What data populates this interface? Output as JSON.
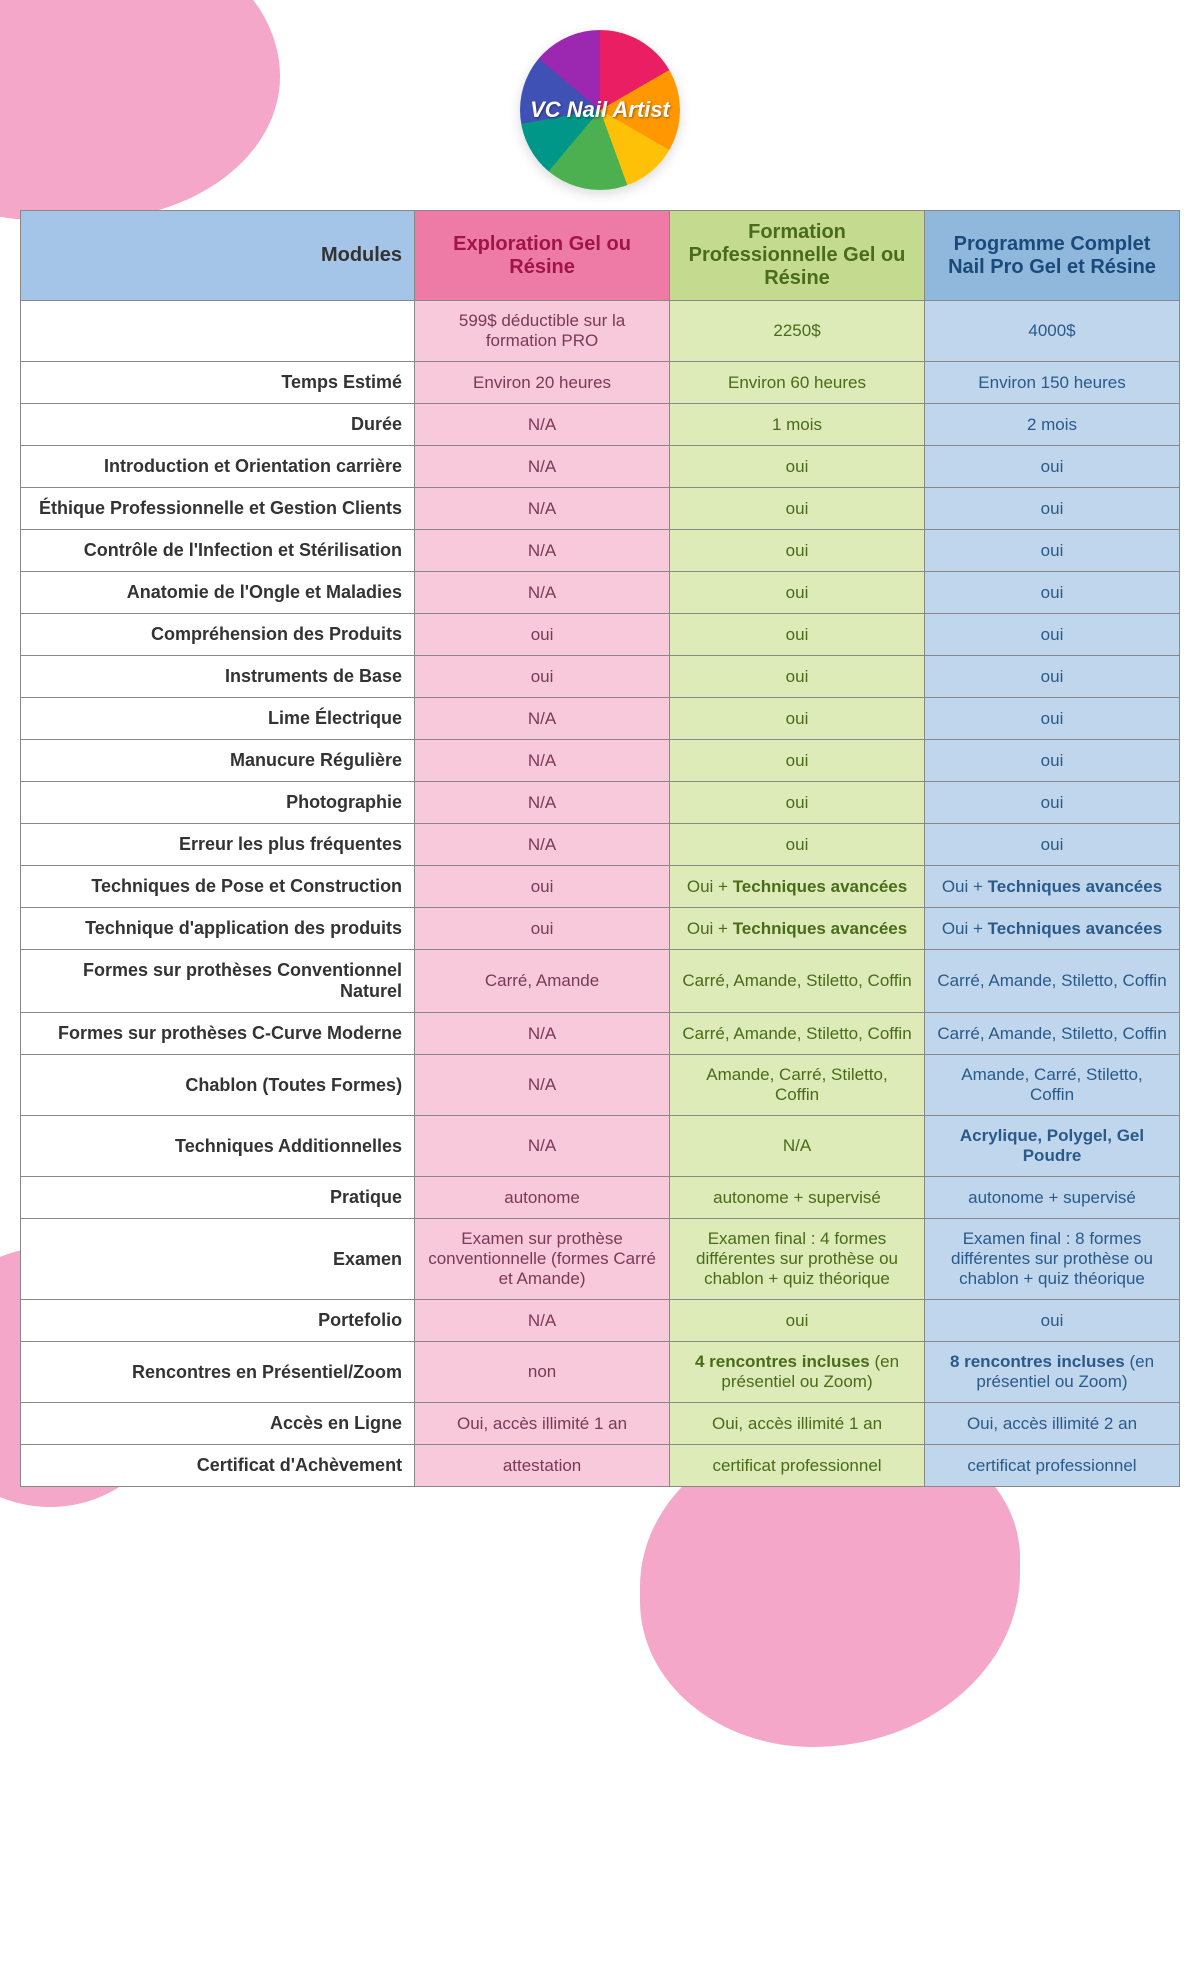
{
  "logo_text": "VC Nail Artist",
  "colors": {
    "header_modules_bg": "#a4c4e8",
    "header_a_bg": "#ed7ba5",
    "header_a_fg": "#a01548",
    "header_b_bg": "#c4db8f",
    "header_b_fg": "#4a6b1a",
    "header_c_bg": "#8fb8dc",
    "header_c_fg": "#1a4a7a",
    "cell_a_bg": "#f7c9da",
    "cell_a_fg": "#7a3956",
    "cell_b_bg": "#dcebb8",
    "cell_b_fg": "#4a6b1a",
    "cell_c_bg": "#bfd6ec",
    "cell_c_fg": "#2a5a8a",
    "blob": "#f4a7c8",
    "border": "#888888"
  },
  "typography": {
    "header_fontsize": 20,
    "label_fontsize": 18,
    "cell_fontsize": 17
  },
  "header": {
    "modules": "Modules",
    "col_a": "Exploration Gel ou Résine",
    "col_b": "Formation Professionnelle Gel ou Résine",
    "col_c": "Programme Complet Nail Pro Gel et Résine"
  },
  "rows": [
    {
      "label": "",
      "a": "599$ déductible sur la formation PRO",
      "b": "2250$",
      "c": "4000$"
    },
    {
      "label": "Temps Estimé",
      "a": "Environ 20 heures",
      "b": "Environ 60 heures",
      "c": "Environ 150 heures"
    },
    {
      "label": "Durée",
      "a": "N/A",
      "b": "1 mois",
      "c": "2 mois"
    },
    {
      "label": "Introduction et Orientation carrière",
      "a": "N/A",
      "b": "oui",
      "c": "oui"
    },
    {
      "label": "Éthique Professionnelle et Gestion Clients",
      "a": "N/A",
      "b": "oui",
      "c": "oui"
    },
    {
      "label": "Contrôle de l'Infection et Stérilisation",
      "a": "N/A",
      "b": "oui",
      "c": "oui"
    },
    {
      "label": "Anatomie de l'Ongle et Maladies",
      "a": "N/A",
      "b": "oui",
      "c": "oui"
    },
    {
      "label": "Compréhension des Produits",
      "a": "oui",
      "b": "oui",
      "c": "oui"
    },
    {
      "label": "Instruments de Base",
      "a": "oui",
      "b": "oui",
      "c": "oui"
    },
    {
      "label": "Lime Électrique",
      "a": "N/A",
      "b": "oui",
      "c": "oui"
    },
    {
      "label": "Manucure Régulière",
      "a": "N/A",
      "b": "oui",
      "c": "oui"
    },
    {
      "label": "Photographie",
      "a": "N/A",
      "b": "oui",
      "c": "oui"
    },
    {
      "label": "Erreur les plus fréquentes",
      "a": "N/A",
      "b": "oui",
      "c": "oui"
    },
    {
      "label": "Techniques de Pose et Construction",
      "a": "oui",
      "b_pre": "Oui + ",
      "b_bold": "Techniques avancées",
      "c_pre": "Oui + ",
      "c_bold": "Techniques avancées",
      "rich": true
    },
    {
      "label": "Technique d'application des produits",
      "a": "oui",
      "b_pre": "Oui + ",
      "b_bold": "Techniques avancées",
      "c_pre": "Oui + ",
      "c_bold": "Techniques avancées",
      "rich": true
    },
    {
      "label": "Formes sur prothèses Conventionnel Naturel",
      "a": "Carré, Amande",
      "b": "Carré, Amande, Stiletto, Coffin",
      "c": "Carré, Amande, Stiletto, Coffin"
    },
    {
      "label": "Formes  sur prothèses C-Curve Moderne",
      "a": "N/A",
      "b": "Carré, Amande, Stiletto, Coffin",
      "c": "Carré, Amande, Stiletto, Coffin"
    },
    {
      "label": "Chablon (Toutes Formes)",
      "a": "N/A",
      "b": "Amande, Carré, Stiletto, Coffin",
      "c": "Amande, Carré, Stiletto, Coffin"
    },
    {
      "label": "Techniques Additionnelles",
      "a": "N/A",
      "b": "N/A",
      "c_bold_only": "Acrylique, Polygel, Gel Poudre",
      "rich_c_only": true
    },
    {
      "label": "Pratique",
      "a": "autonome",
      "b": "autonome + supervisé",
      "c": "autonome + supervisé"
    },
    {
      "label": "Examen",
      "a": "Examen sur prothèse conventionnelle (formes Carré et Amande)",
      "b": "Examen final : 4 formes différentes sur prothèse ou chablon + quiz théorique",
      "c": "Examen final : 8 formes différentes sur prothèse ou chablon + quiz théorique"
    },
    {
      "label": "Portefolio",
      "a": "N/A",
      "b": "oui",
      "c": "oui"
    },
    {
      "label": "Rencontres en Présentiel/Zoom",
      "a": "non",
      "b_bold": "4 rencontres incluses",
      "b_post": " (en présentiel ou Zoom)",
      "c_bold": "8 rencontres incluses",
      "c_post": " (en présentiel ou Zoom)",
      "rich_post": true
    },
    {
      "label": "Accès en Ligne",
      "a": "Oui, accès illimité 1 an",
      "b": "Oui, accès illimité 1 an",
      "c": "Oui, accès illimité 2 an"
    },
    {
      "label": "Certificat d'Achèvement",
      "a": "attestation",
      "b": "certificat professionnel",
      "c": "certificat professionnel"
    }
  ]
}
